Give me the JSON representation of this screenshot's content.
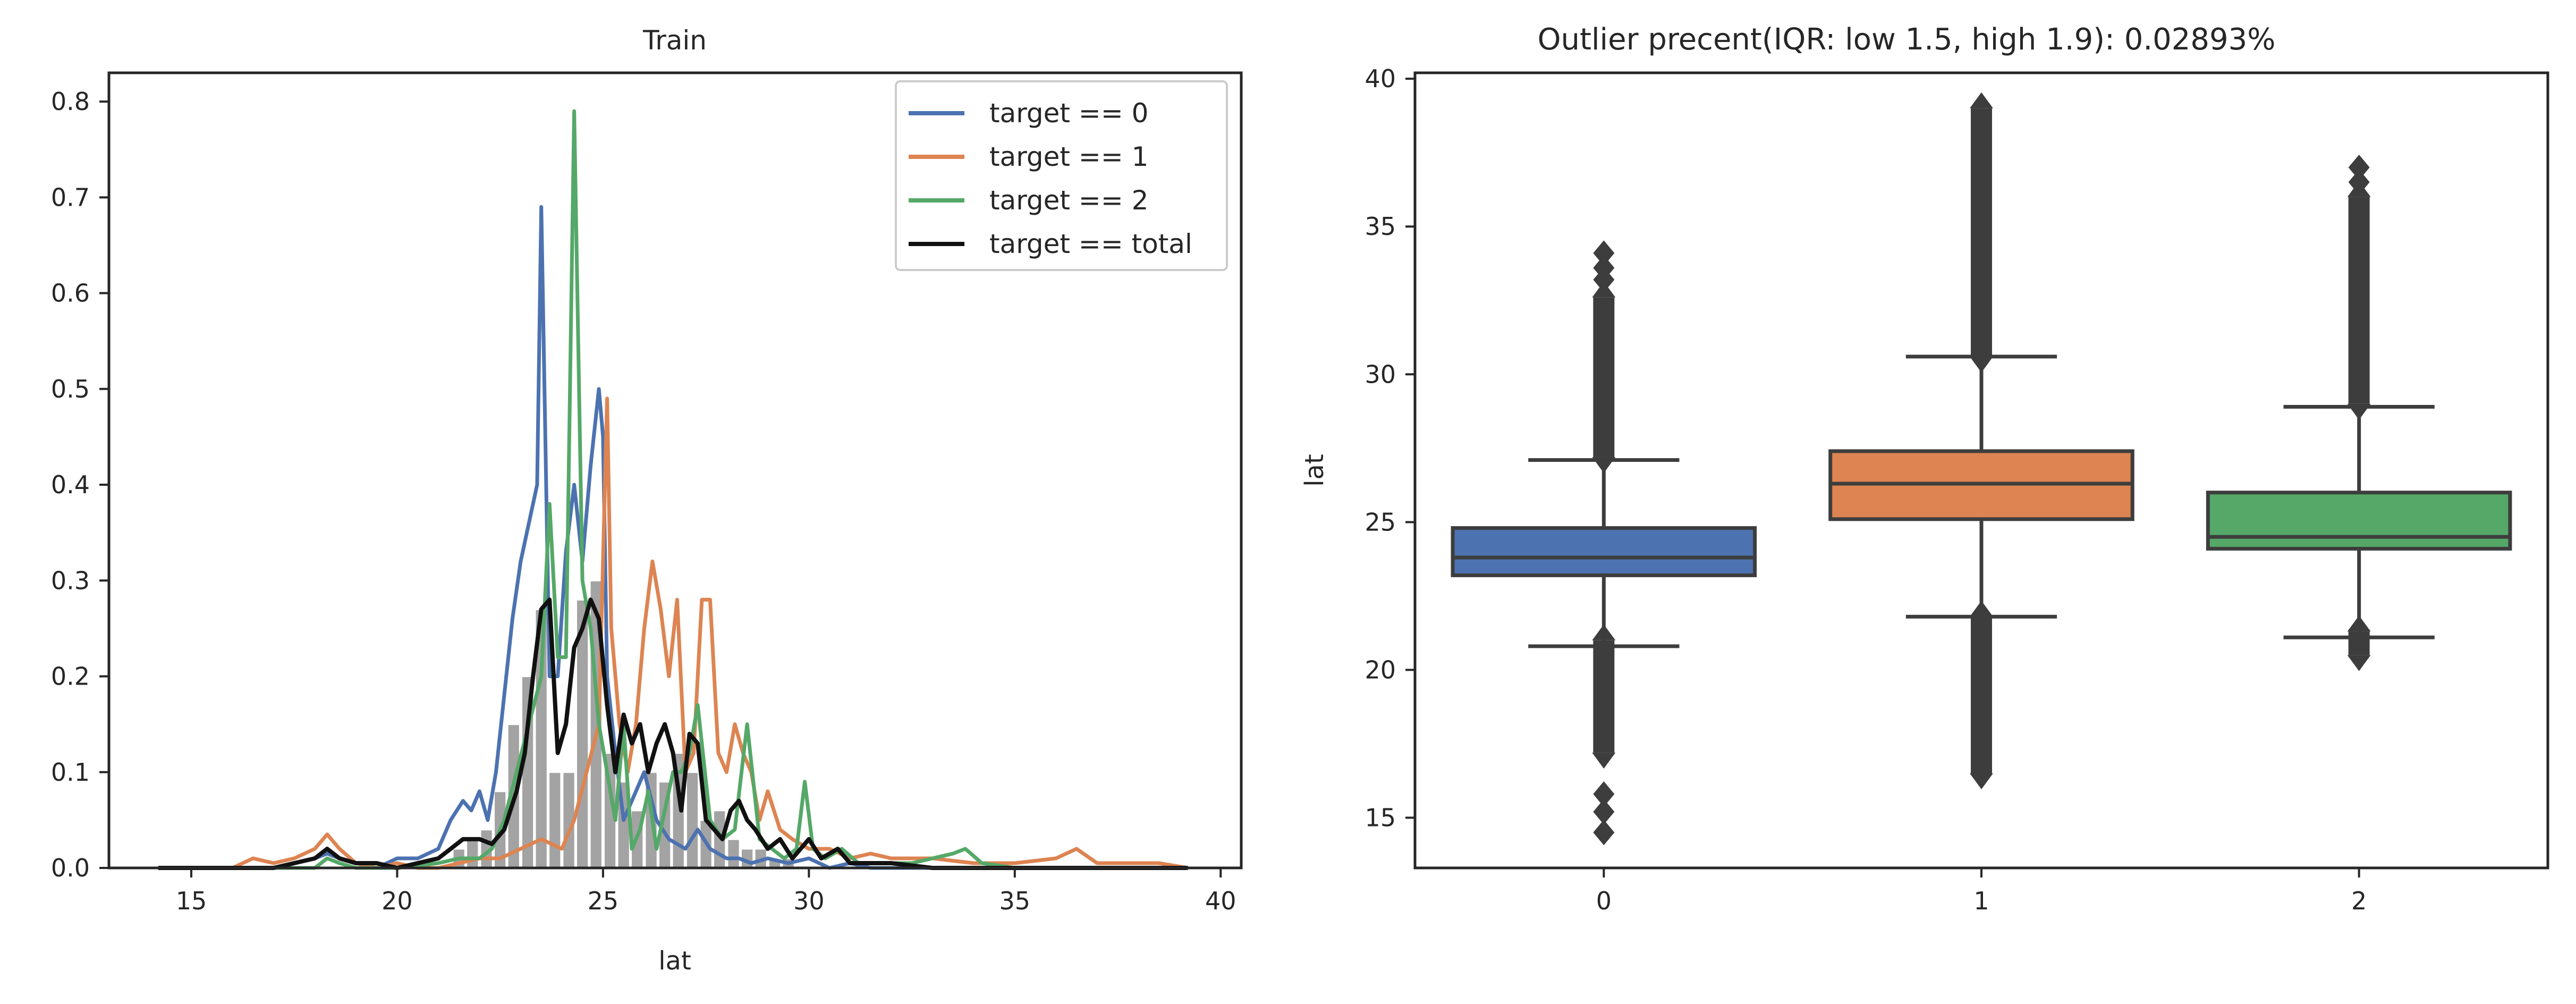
{
  "chart_data": [
    {
      "type": "line",
      "title": "Train",
      "xlabel": "lat",
      "ylabel": "",
      "xlim": [
        13,
        40.5
      ],
      "ylim": [
        0,
        0.83
      ],
      "x_ticks": [
        15,
        20,
        25,
        30,
        35,
        40
      ],
      "x_tick_labels": [
        "15",
        "20",
        "25",
        "30",
        "35",
        "40"
      ],
      "y_ticks": [
        0,
        0.1,
        0.2,
        0.3,
        0.4,
        0.5,
        0.6,
        0.7,
        0.8
      ],
      "y_tick_labels": [
        "0.0",
        "0.1",
        "0.2",
        "0.3",
        "0.4",
        "0.5",
        "0.6",
        "0.7",
        "0.8"
      ],
      "legend_position": "top-right",
      "histogram": {
        "color": "#a3a3a3",
        "x": [
          21.5,
          21.83,
          22.17,
          22.5,
          22.83,
          23.17,
          23.5,
          23.83,
          24.17,
          24.5,
          24.83,
          25.17,
          25.5,
          25.83,
          26.17,
          26.5,
          26.83,
          27.17,
          27.5,
          27.83,
          28.17,
          28.5,
          28.83,
          29.17,
          29.5
        ],
        "values": [
          0.02,
          0.03,
          0.04,
          0.08,
          0.15,
          0.2,
          0.27,
          0.1,
          0.1,
          0.28,
          0.3,
          0.12,
          0.09,
          0.06,
          0.1,
          0.09,
          0.12,
          0.1,
          0.05,
          0.06,
          0.03,
          0.02,
          0.02,
          0.01,
          0.01
        ],
        "bar_width": 0.3
      },
      "series": [
        {
          "name": "target == 0",
          "color": "#4c72b0",
          "x": [
            14.2,
            15,
            16,
            17,
            18,
            18.3,
            18.6,
            19,
            19.5,
            20,
            20.5,
            21,
            21.3,
            21.6,
            21.8,
            22,
            22.2,
            22.4,
            22.6,
            22.8,
            23,
            23.2,
            23.4,
            23.5,
            23.7,
            23.9,
            24.1,
            24.3,
            24.5,
            24.7,
            24.9,
            25.0,
            25.1,
            25.3,
            25.5,
            25.8,
            26,
            26.3,
            26.6,
            27,
            27.3,
            27.6,
            28,
            28.3,
            28.6,
            29,
            29.5,
            30,
            30.5,
            31,
            31.5,
            32,
            33,
            34,
            35
          ],
          "y": [
            0,
            0,
            0,
            0,
            0.01,
            0.015,
            0.01,
            0.005,
            0,
            0.01,
            0.01,
            0.02,
            0.05,
            0.07,
            0.06,
            0.08,
            0.05,
            0.1,
            0.18,
            0.26,
            0.32,
            0.36,
            0.4,
            0.69,
            0.2,
            0.2,
            0.33,
            0.4,
            0.32,
            0.42,
            0.5,
            0.45,
            0.2,
            0.12,
            0.05,
            0.08,
            0.1,
            0.05,
            0.03,
            0.02,
            0.04,
            0.02,
            0.01,
            0.01,
            0.005,
            0.01,
            0.005,
            0.01,
            0,
            0.005,
            0,
            0,
            0,
            0,
            0
          ]
        },
        {
          "name": "target == 1",
          "color": "#dd8452",
          "x": [
            14.2,
            15,
            16,
            16.5,
            17,
            17.5,
            18,
            18.3,
            18.6,
            19,
            19.5,
            20,
            20.5,
            21,
            21.5,
            22,
            22.5,
            23,
            23.5,
            24,
            24.3,
            24.6,
            24.9,
            25.1,
            25.2,
            25.4,
            25.6,
            25.8,
            26.0,
            26.2,
            26.4,
            26.6,
            26.8,
            27.0,
            27.2,
            27.4,
            27.6,
            27.8,
            28.0,
            28.2,
            28.4,
            28.6,
            28.8,
            29.0,
            29.3,
            29.6,
            30.0,
            30.5,
            31,
            31.5,
            32,
            33,
            34,
            35,
            36,
            36.5,
            37,
            37.5,
            38,
            38.5,
            39.2
          ],
          "y": [
            0,
            0,
            0,
            0.01,
            0.005,
            0.01,
            0.02,
            0.035,
            0.02,
            0.005,
            0,
            0.005,
            0,
            0,
            0.005,
            0.01,
            0.01,
            0.02,
            0.03,
            0.02,
            0.05,
            0.1,
            0.15,
            0.49,
            0.25,
            0.15,
            0.1,
            0.15,
            0.25,
            0.32,
            0.27,
            0.2,
            0.28,
            0.1,
            0.12,
            0.28,
            0.28,
            0.12,
            0.1,
            0.15,
            0.12,
            0.1,
            0.05,
            0.08,
            0.04,
            0.03,
            0.02,
            0.02,
            0.01,
            0.015,
            0.01,
            0.01,
            0.005,
            0.005,
            0.01,
            0.02,
            0.005,
            0.005,
            0.005,
            0.005,
            0
          ]
        },
        {
          "name": "target == 2",
          "color": "#55a868",
          "x": [
            14.2,
            15,
            17,
            18,
            18.3,
            18.6,
            19,
            20,
            21,
            21.5,
            22,
            22.3,
            22.6,
            22.9,
            23.2,
            23.5,
            23.7,
            23.9,
            24.1,
            24.3,
            24.5,
            24.7,
            24.9,
            25.1,
            25.3,
            25.5,
            25.7,
            25.9,
            26.1,
            26.3,
            26.5,
            26.7,
            26.9,
            27.1,
            27.3,
            27.6,
            27.9,
            28.2,
            28.5,
            28.8,
            29.1,
            29.4,
            29.7,
            29.9,
            30.1,
            30.4,
            30.8,
            31.2,
            32,
            32.5,
            33,
            33.5,
            33.8,
            34.2,
            35
          ],
          "y": [
            0,
            0,
            0,
            0,
            0.01,
            0.005,
            0,
            0,
            0.005,
            0.01,
            0.01,
            0.02,
            0.05,
            0.1,
            0.15,
            0.2,
            0.38,
            0.22,
            0.22,
            0.79,
            0.3,
            0.25,
            0.15,
            0.1,
            0.05,
            0.15,
            0.02,
            0.04,
            0.08,
            0.02,
            0.06,
            0.1,
            0.1,
            0.12,
            0.17,
            0.05,
            0.03,
            0.04,
            0.15,
            0.03,
            0.02,
            0.01,
            0.02,
            0.09,
            0.02,
            0.01,
            0.02,
            0.005,
            0.005,
            0.005,
            0.01,
            0.015,
            0.02,
            0.005,
            0
          ]
        },
        {
          "name": "target == total",
          "color": "#111111",
          "x": [
            14.2,
            15,
            16,
            17,
            17.5,
            18,
            18.3,
            18.6,
            19,
            19.5,
            20,
            20.5,
            21,
            21.3,
            21.6,
            22,
            22.3,
            22.6,
            22.9,
            23.1,
            23.3,
            23.5,
            23.7,
            23.9,
            24.1,
            24.3,
            24.5,
            24.7,
            24.9,
            25.1,
            25.3,
            25.5,
            25.7,
            25.9,
            26.1,
            26.3,
            26.5,
            26.7,
            26.9,
            27.1,
            27.3,
            27.5,
            27.7,
            27.9,
            28.1,
            28.3,
            28.5,
            28.7,
            29.0,
            29.3,
            29.6,
            30.0,
            30.3,
            30.7,
            31,
            31.5,
            32,
            33,
            34,
            35,
            37,
            39.2
          ],
          "y": [
            0,
            0,
            0,
            0,
            0.005,
            0.01,
            0.02,
            0.01,
            0.005,
            0.005,
            0,
            0.005,
            0.01,
            0.02,
            0.03,
            0.03,
            0.025,
            0.04,
            0.08,
            0.12,
            0.2,
            0.27,
            0.28,
            0.12,
            0.15,
            0.23,
            0.25,
            0.28,
            0.26,
            0.17,
            0.1,
            0.16,
            0.13,
            0.15,
            0.1,
            0.13,
            0.15,
            0.12,
            0.06,
            0.14,
            0.13,
            0.05,
            0.04,
            0.03,
            0.06,
            0.07,
            0.05,
            0.04,
            0.02,
            0.03,
            0.01,
            0.03,
            0.01,
            0.02,
            0.005,
            0.005,
            0.005,
            0,
            0,
            0,
            0,
            0
          ]
        }
      ]
    },
    {
      "type": "box",
      "title": "Outlier precent(IQR: low 1.5, high 1.9): 0.02893%",
      "xlabel": "",
      "ylabel": "lat",
      "ylim": [
        13.3,
        40.2
      ],
      "y_ticks": [
        15,
        20,
        25,
        30,
        35,
        40
      ],
      "y_tick_labels": [
        "15",
        "20",
        "25",
        "30",
        "35",
        "40"
      ],
      "categories": [
        "0",
        "1",
        "2"
      ],
      "boxes": [
        {
          "category": "0",
          "color": "#4c72b0",
          "q1": 23.2,
          "median": 23.8,
          "q3": 24.8,
          "whisker_low": 20.8,
          "whisker_high": 27.1,
          "outlier_low_range": [
            17.2,
            21.0
          ],
          "outlier_high_range": [
            27.2,
            32.6
          ],
          "outliers_extra": [
            14.5,
            15.2,
            15.8,
            33.2,
            33.6,
            34.1
          ]
        },
        {
          "category": "1",
          "color": "#dd8452",
          "q1": 25.1,
          "median": 26.3,
          "q3": 27.4,
          "whisker_low": 21.8,
          "whisker_high": 30.6,
          "outlier_low_range": [
            16.5,
            21.8
          ],
          "outlier_high_range": [
            30.6,
            39.0
          ],
          "outliers_extra": []
        },
        {
          "category": "2",
          "color": "#55a868",
          "q1": 24.1,
          "median": 24.5,
          "q3": 26.0,
          "whisker_low": 21.1,
          "whisker_high": 28.9,
          "outlier_low_range": [
            20.5,
            21.3
          ],
          "outlier_high_range": [
            29.0,
            36.0
          ],
          "outliers_extra": [
            36.5,
            37.0
          ]
        }
      ]
    }
  ]
}
